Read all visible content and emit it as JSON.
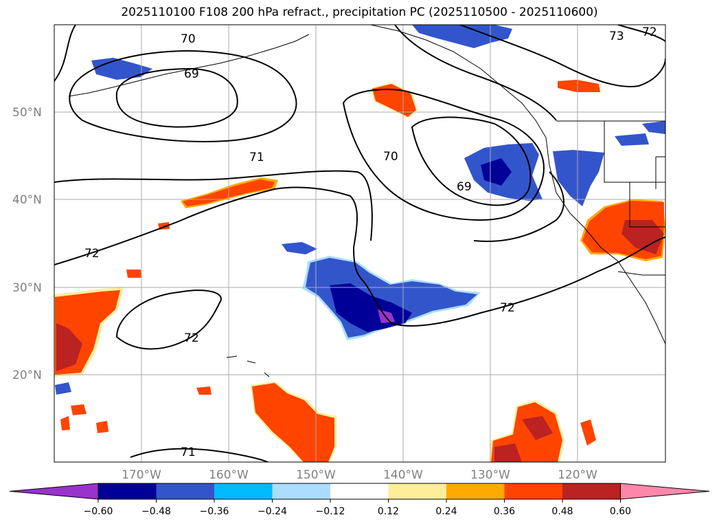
{
  "title": "2025110100 F108 200 hPa refract., precipitation PC (2025110500 - 2025110600)",
  "lat_labels": [
    "50°N",
    "40°N",
    "30°N",
    "20°N"
  ],
  "lon_labels": [
    "170°W",
    "160°W",
    "150°W",
    "140°W",
    "130°W",
    "120°W"
  ],
  "contour_labels": [
    "70",
    "69",
    "71",
    "70",
    "69",
    "73",
    "72",
    "72",
    "72",
    "72",
    "71"
  ],
  "colorbar": {
    "ticks": [
      "−0.60",
      "−0.48",
      "−0.36",
      "−0.24",
      "−0.12",
      "0.12",
      "0.24",
      "0.36",
      "0.48",
      "0.60"
    ],
    "colors": [
      "#9933cc",
      "#000099",
      "#3355cc",
      "#00bbff",
      "#aaddff",
      "#ffffff",
      "#ffee99",
      "#ffaa00",
      "#ff4400",
      "#bb2222",
      "#ff88aa"
    ]
  },
  "palette": {
    "land": "#000000",
    "grid": "#aaaaaa",
    "label_gray": "#808080"
  }
}
